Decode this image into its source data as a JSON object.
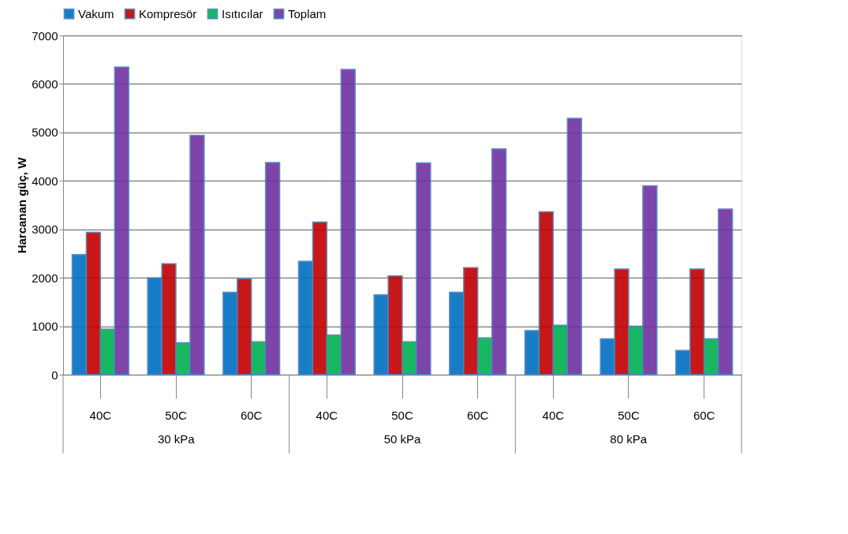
{
  "chart_data": {
    "type": "bar",
    "ylabel": "Harcanan güç, W",
    "categories": [
      "40C",
      "50C",
      "60C",
      "40C",
      "50C",
      "60C",
      "40C",
      "50C",
      "60C"
    ],
    "annotations": [
      "30 kPa",
      "50 kPa",
      "80 kPa"
    ],
    "series": [
      {
        "name": "Vakum",
        "color": "#0070c0",
        "values": [
          2480,
          2000,
          1700,
          2340,
          1650,
          1700,
          910,
          740,
          500
        ]
      },
      {
        "name": "Kompresör",
        "color": "#c00000",
        "values": [
          2940,
          2290,
          1980,
          3150,
          2040,
          2210,
          3360,
          2180,
          2180
        ]
      },
      {
        "name": "Isıtıcılar",
        "color": "#00b050",
        "values": [
          940,
          660,
          680,
          820,
          680,
          760,
          1020,
          1000,
          740
        ]
      },
      {
        "name": "Toplam",
        "color": "#7030a0",
        "values": [
          6350,
          4940,
          4380,
          6300,
          4370,
          4660,
          5290,
          3900,
          3420
        ]
      }
    ],
    "ylim": [
      0,
      7000
    ],
    "yticks": [
      0,
      1000,
      2000,
      3000,
      4000,
      5000,
      6000,
      7000
    ],
    "grid": "y",
    "legend": "top"
  }
}
